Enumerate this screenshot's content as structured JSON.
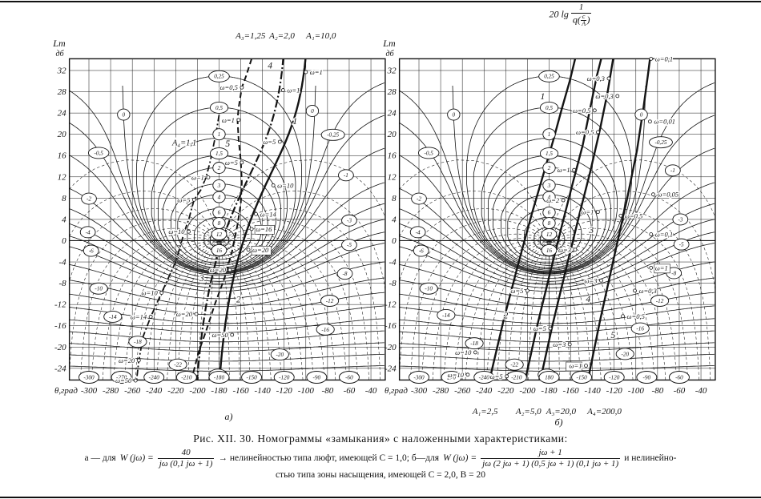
{
  "figure": {
    "title": "Рис. XII. 30. Номограммы «замыкания» с наложенными характеристиками:",
    "a_prefix": "а — для",
    "w_eq": "W (jω) =",
    "frac_a_num": "40",
    "frac_a_den": "jω (0,1 jω + 1)",
    "mid": "→ нелинейностью типа люфт, имеющей C = 1,0; б—для",
    "frac_b_num": "jω + 1",
    "frac_b_den": "jω (2 jω + 1) (0,5 jω + 1) (0,1 jω + 1)",
    "tail": "и нелинейно-",
    "line3": "стью типа зоны насыщения, имеющей C = 2,0, B = 20"
  },
  "formula_title_b": {
    "prefix": "20 lg",
    "num": "1",
    "q": "q(",
    "c": "c",
    "A": "A",
    "close": ")"
  },
  "nomogram": {
    "ylabel1": "Lm",
    "ylabel2": "дб",
    "xlabel": "θ,град",
    "x_ticks": [
      -300,
      -280,
      -260,
      -240,
      -220,
      -200,
      -180,
      -160,
      -140,
      -120,
      -100,
      -80,
      -60,
      -40
    ],
    "y_ticks": [
      32,
      28,
      24,
      20,
      16,
      12,
      8,
      4,
      0,
      -4,
      -8,
      -12,
      -16,
      -20,
      -24
    ],
    "m_contours_db": [
      16,
      12,
      8,
      6,
      4,
      3,
      2,
      1.5,
      1,
      0.5,
      0.25,
      0,
      -0.25,
      -0.5,
      -1,
      -2,
      -3,
      -4,
      -5,
      -6,
      -8,
      -10,
      -12,
      -14,
      -16,
      -18,
      -20,
      -22,
      -24
    ],
    "phase_step_deg": 10,
    "xlim": [
      -318,
      -26.8
    ],
    "ylim": [
      -26.2,
      34.2
    ]
  },
  "chart_data": [
    {
      "type": "line",
      "id": "a",
      "sub_label": "а)",
      "top_labels": [
        [
          "A₃=1,25",
          -151
        ],
        [
          "A₂=2,0",
          -122
        ],
        [
          "A₁=10,0",
          -86
        ]
      ],
      "circled_phase_row": [
        "-300",
        "-270",
        "-240",
        "-210",
        "-180",
        "-150",
        "-120",
        "-90",
        "-60"
      ],
      "circled_center": [
        [
          "0,25",
          30.9
        ],
        [
          "0,5",
          25.0
        ],
        [
          "1",
          20.0
        ],
        [
          "1,5",
          16.4
        ],
        [
          "2",
          13.7
        ],
        [
          "3",
          10.4
        ],
        [
          "4",
          8.2
        ],
        [
          "6",
          5.3
        ],
        [
          "8",
          3.3
        ],
        [
          "12",
          1.2
        ],
        [
          "16",
          -1.8
        ]
      ],
      "circled_side": [
        [
          "0",
          -268,
          23.7
        ],
        [
          "-0,5",
          -291,
          16.5
        ],
        [
          "-2",
          -300,
          7.9
        ],
        [
          "-4",
          -301,
          1.6
        ],
        [
          "-6",
          -298,
          -1.9
        ],
        [
          "-10",
          -291,
          -9.0
        ],
        [
          "-14",
          -278,
          -14.3
        ],
        [
          "-18",
          -255,
          -19.0
        ],
        [
          "-22",
          -218,
          -23.3
        ],
        [
          "-24",
          -181,
          -25.2
        ],
        [
          "0",
          -94,
          24.4
        ],
        [
          "-0,25",
          -75,
          19.9
        ],
        [
          "-1",
          -63,
          12.3
        ],
        [
          "-3",
          -60,
          3.8
        ],
        [
          "-5",
          -60,
          -0.8
        ],
        [
          "-8",
          -64,
          -6.2
        ],
        [
          "-12",
          -78,
          -11.3
        ],
        [
          "-16",
          -82,
          -16.7
        ],
        [
          "-20",
          -124,
          -21.4
        ]
      ],
      "model_a": {
        "K": 40,
        "T": 0.1
      },
      "overlays": [
        {
          "label": "A₁=10,0",
          "style": "solid",
          "model": {
            "dtheta": -6,
            "dL": -0.3
          }
        },
        {
          "label": "A₂=2,0",
          "style": "dashdot",
          "model": {
            "dtheta": -27,
            "dL": -1.2
          }
        },
        {
          "label": "A₃=1,25",
          "style": "dashed",
          "points": [
            [
              -150,
              34.2
            ],
            [
              -155,
              31
            ],
            [
              -159,
              28.8
            ],
            [
              -162,
              25
            ],
            [
              -163,
              22.7
            ],
            [
              -162,
              19
            ],
            [
              -160,
              15
            ],
            [
              -159,
              11
            ],
            [
              -160,
              7
            ],
            [
              -163,
              3
            ],
            [
              -168,
              -2
            ],
            [
              -175,
              -7
            ],
            [
              -184,
              -12
            ],
            [
              -192,
              -17
            ],
            [
              -199,
              -21
            ],
            [
              -204,
              -25
            ],
            [
              -207,
              -28
            ]
          ]
        },
        {
          "label": "A₄=1,1",
          "style": "dashdot2",
          "points": [
            [
              -178,
              26
            ],
            [
              -183,
              20
            ],
            [
              -188,
              15
            ],
            [
              -192,
              11.9
            ],
            [
              -197,
              9.5
            ],
            [
              -203,
              7.7
            ],
            [
              -208,
              4
            ],
            [
              -212,
              1.7
            ],
            [
              -220,
              -4
            ],
            [
              -233,
              -9.8
            ],
            [
              -243,
              -14.3
            ],
            [
              -250,
              -18
            ],
            [
              -254,
              -22.5
            ],
            [
              -257,
              -28
            ]
          ]
        }
      ],
      "inner_labels": [
        [
          "A₄=1,1",
          -212,
          18.4
        ]
      ],
      "omega_labels": [
        [
          "ω=1",
          -100,
          31.7,
          "s",
          false
        ],
        [
          "ω=0,5",
          -159,
          28.8,
          "e",
          false
        ],
        [
          "ω=1",
          -121,
          28.3,
          "s",
          false
        ],
        [
          "ω=1",
          -162,
          22.7,
          "e",
          false
        ],
        [
          "ω=5",
          -124,
          18.6,
          "e",
          false
        ],
        [
          "ω=5",
          -159,
          14.7,
          "e",
          false
        ],
        [
          "ω=1",
          -190,
          11.9,
          "e",
          false
        ],
        [
          "ω=10",
          -130,
          10.4,
          "s",
          false
        ],
        [
          "ω=5",
          -203,
          7.7,
          "e",
          false
        ],
        [
          "ω=14",
          -146,
          5.0,
          "s",
          false
        ],
        [
          "ω=16",
          -150,
          2.2,
          "s",
          true
        ],
        [
          "ω=10",
          -208,
          1.7,
          "e",
          false
        ],
        [
          "ω=20",
          -153,
          -1.7,
          "s",
          true
        ],
        [
          "ω=20",
          -170,
          -5.5,
          "e",
          false
        ],
        [
          "ω=10",
          -233,
          -9.8,
          "e",
          false
        ],
        [
          "ω=20",
          -201,
          -13.8,
          "e",
          false
        ],
        [
          "ω=14",
          -243,
          -14.3,
          "e",
          false
        ],
        [
          "ω=50",
          -168,
          -17.7,
          "e",
          false
        ],
        [
          "ω=20",
          -254,
          -22.5,
          "e",
          false
        ],
        [
          "ω=50",
          -257,
          -26.3,
          "e",
          false
        ]
      ],
      "curve_number_labels": [
        [
          "1",
          -110,
          22.5
        ],
        [
          "2",
          -162,
          -11
        ],
        [
          "3",
          -196,
          -7
        ],
        [
          "4",
          -133,
          33
        ],
        [
          "5",
          -172,
          18.3
        ]
      ]
    },
    {
      "type": "line",
      "id": "b",
      "sub_label": "б)",
      "bottom_labels": [
        [
          "A₁=2,5",
          -239
        ],
        [
          "A₂=5,0",
          -199
        ],
        [
          "A₃=20,0",
          -169
        ],
        [
          "A₄=200,0",
          -129
        ]
      ],
      "circled_phase_row": [
        "-300",
        "270",
        "-240",
        "-210",
        "180",
        "-150",
        "-120",
        "-90",
        "-60"
      ],
      "circled_center": [
        [
          "0,25",
          30.9
        ],
        [
          "0,5",
          25.0
        ],
        [
          "1",
          20.0
        ],
        [
          "1,5",
          16.4
        ],
        [
          "2",
          13.7
        ],
        [
          "3",
          10.4
        ],
        [
          "4",
          8.2
        ],
        [
          "6",
          5.3
        ],
        [
          "8",
          3.3
        ],
        [
          "12",
          1.2
        ],
        [
          "16",
          -1.8
        ]
      ],
      "circled_side": [
        [
          "0",
          -268,
          23.7
        ],
        [
          "-0,5",
          -291,
          16.5
        ],
        [
          "-2",
          -300,
          7.9
        ],
        [
          "-4",
          -301,
          1.6
        ],
        [
          "-6",
          -298,
          -1.9
        ],
        [
          "-10",
          -291,
          -9.0
        ],
        [
          "-14",
          -275,
          -14.0
        ],
        [
          "-18",
          -249,
          -19.3
        ],
        [
          "-22",
          -212,
          -23.3
        ],
        [
          "-24",
          -182,
          -25.2
        ],
        [
          "0",
          -95,
          23.7
        ],
        [
          "-0,25",
          -77,
          18.5
        ],
        [
          "-1",
          -66,
          13.2
        ],
        [
          "-3",
          -59,
          4.0
        ],
        [
          "-5",
          -58,
          -0.7
        ],
        [
          "-8",
          -65,
          -6.1
        ],
        [
          "-12",
          -78,
          -11.3
        ],
        [
          "-16",
          -96,
          -16.5
        ],
        [
          "-20",
          -110,
          -21.3
        ]
      ],
      "overlays": [
        {
          "label": "A₁=2,5",
          "style": "solid",
          "points": [
            [
              -237,
              -28
            ],
            [
              -222,
              -15
            ],
            [
              -208,
              -4
            ],
            [
              -196,
              5
            ],
            [
              -186,
              12
            ],
            [
              -176,
              19
            ],
            [
              -168,
              25
            ],
            [
              -161,
              30
            ],
            [
              -156,
              34.2
            ]
          ]
        },
        {
          "label": "A₂=5,0",
          "style": "solid",
          "points": [
            [
              -204,
              -28
            ],
            [
              -191,
              -16
            ],
            [
              -179,
              -6
            ],
            [
              -168,
              3
            ],
            [
              -158,
              11
            ],
            [
              -149,
              18
            ],
            [
              -142,
              25
            ],
            [
              -136,
              31
            ],
            [
              -132,
              34.2
            ]
          ]
        },
        {
          "label": "A₃=20,0",
          "style": "solid",
          "points": [
            [
              -190,
              -28
            ],
            [
              -177,
              -16
            ],
            [
              -164,
              -5
            ],
            [
              -152,
              5
            ],
            [
              -142,
              13
            ],
            [
              -133,
              21
            ],
            [
              -126,
              28
            ],
            [
              -121,
              34.2
            ]
          ]
        },
        {
          "label": "A₄=200,0",
          "style": "solid",
          "points": [
            [
              -146,
              -28
            ],
            [
              -133,
              -15
            ],
            [
              -120,
              -3
            ],
            [
              -108,
              8
            ],
            [
              -99,
              17
            ],
            [
              -93,
              25
            ],
            [
              -89,
              31
            ],
            [
              -87,
              34.2
            ]
          ]
        }
      ],
      "inner_labels": [],
      "omega_labels": [
        [
          "ω=0,1",
          -86,
          34.2,
          "s",
          false
        ],
        [
          "ω=0,3",
          -125,
          30.5,
          "e",
          false
        ],
        [
          "ω=0,3",
          -117,
          27.2,
          "e",
          false
        ],
        [
          "ω=0,5",
          -138,
          24.5,
          "e",
          false
        ],
        [
          "ω=0,01",
          -87,
          22.4,
          "s",
          false
        ],
        [
          "ω=0,5",
          -135,
          20.4,
          "e",
          false
        ],
        [
          "ω=1",
          -157,
          13.3,
          "e",
          false
        ],
        [
          "ω=0,05",
          -84,
          8.7,
          "s",
          false
        ],
        [
          "ω=2",
          -167,
          7.6,
          "e",
          false
        ],
        [
          "ω=1",
          -135,
          5.4,
          "e",
          false
        ],
        [
          "ω=0,5",
          -114,
          4.7,
          "s",
          false
        ],
        [
          "ω=0,1",
          -86,
          1.2,
          "s",
          false
        ],
        [
          "ω=3",
          -156,
          -1.7,
          "e",
          false
        ],
        [
          "ω=1",
          -86,
          -5.1,
          "s",
          true
        ],
        [
          "ω=3",
          -132,
          -7.5,
          "e",
          false
        ],
        [
          "ω=0,3",
          -101,
          -9.4,
          "s",
          false
        ],
        [
          "ω=5",
          -200,
          -9.4,
          "e",
          false
        ],
        [
          "ω=0,5",
          -112,
          -14.2,
          "s",
          false
        ],
        [
          "ω=5",
          -179,
          -16.5,
          "e",
          false
        ],
        [
          "ω=3",
          -161,
          -19.5,
          "e",
          false
        ],
        [
          "ω=10",
          -248,
          -21.0,
          "e",
          false
        ],
        [
          "ω=1",
          -146,
          -23.5,
          "e",
          true
        ],
        [
          "ω=10",
          -255,
          -25.2,
          "e",
          false
        ],
        [
          "ω=5",
          -219,
          -25.5,
          "e",
          false
        ]
      ],
      "curve_number_labels": [
        [
          "1",
          -186,
          27.2
        ],
        [
          "2",
          -220,
          -14
        ],
        [
          "3",
          -141,
          2.0
        ],
        [
          "4",
          -144,
          -10.9
        ],
        [
          "5",
          -121,
          -17.7
        ]
      ]
    }
  ]
}
